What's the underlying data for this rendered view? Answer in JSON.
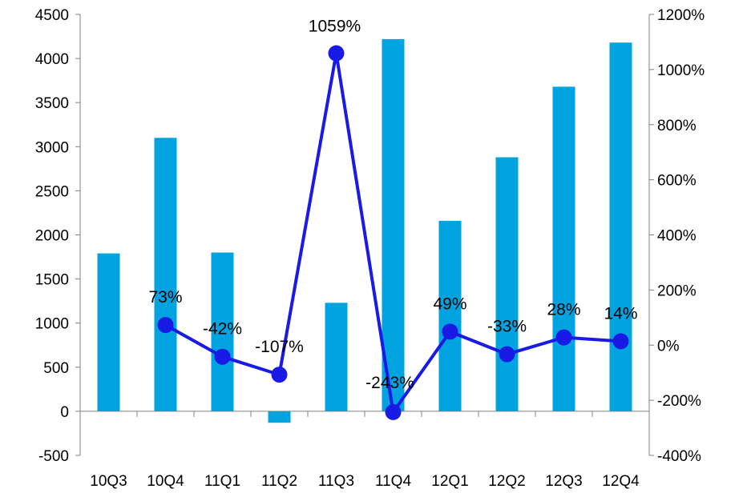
{
  "chart_data": {
    "type": "bar",
    "categories": [
      "10Q3",
      "10Q4",
      "11Q1",
      "11Q2",
      "11Q3",
      "11Q4",
      "12Q1",
      "12Q2",
      "12Q3",
      "12Q4"
    ],
    "series": [
      {
        "type": "bar",
        "axis": "left",
        "values": [
          1790,
          3100,
          1800,
          -130,
          1230,
          4220,
          2160,
          2880,
          3680,
          4180
        ]
      },
      {
        "type": "line",
        "axis": "right",
        "values": [
          null,
          73,
          -42,
          -107,
          1059,
          -243,
          49,
          -33,
          28,
          14
        ],
        "labels": [
          "",
          "73%",
          "-42%",
          "-107%",
          "1059%",
          "-243%",
          "49%",
          "-33%",
          "28%",
          "14%"
        ]
      }
    ],
    "ylim": [
      -500,
      4500
    ],
    "y2lim": [
      -400,
      1200
    ],
    "yticks": [
      "-500",
      "0",
      "500",
      "1000",
      "1500",
      "2000",
      "2500",
      "3000",
      "3500",
      "4000",
      "4500"
    ],
    "y2ticks": [
      "-400%",
      "-200%",
      "0%",
      "200%",
      "400%",
      "600%",
      "800%",
      "1000%",
      "1200%"
    ],
    "legend": "none",
    "grid": false,
    "colors": {
      "bar": "#00A3E0",
      "line": "#1A1AE6"
    }
  }
}
